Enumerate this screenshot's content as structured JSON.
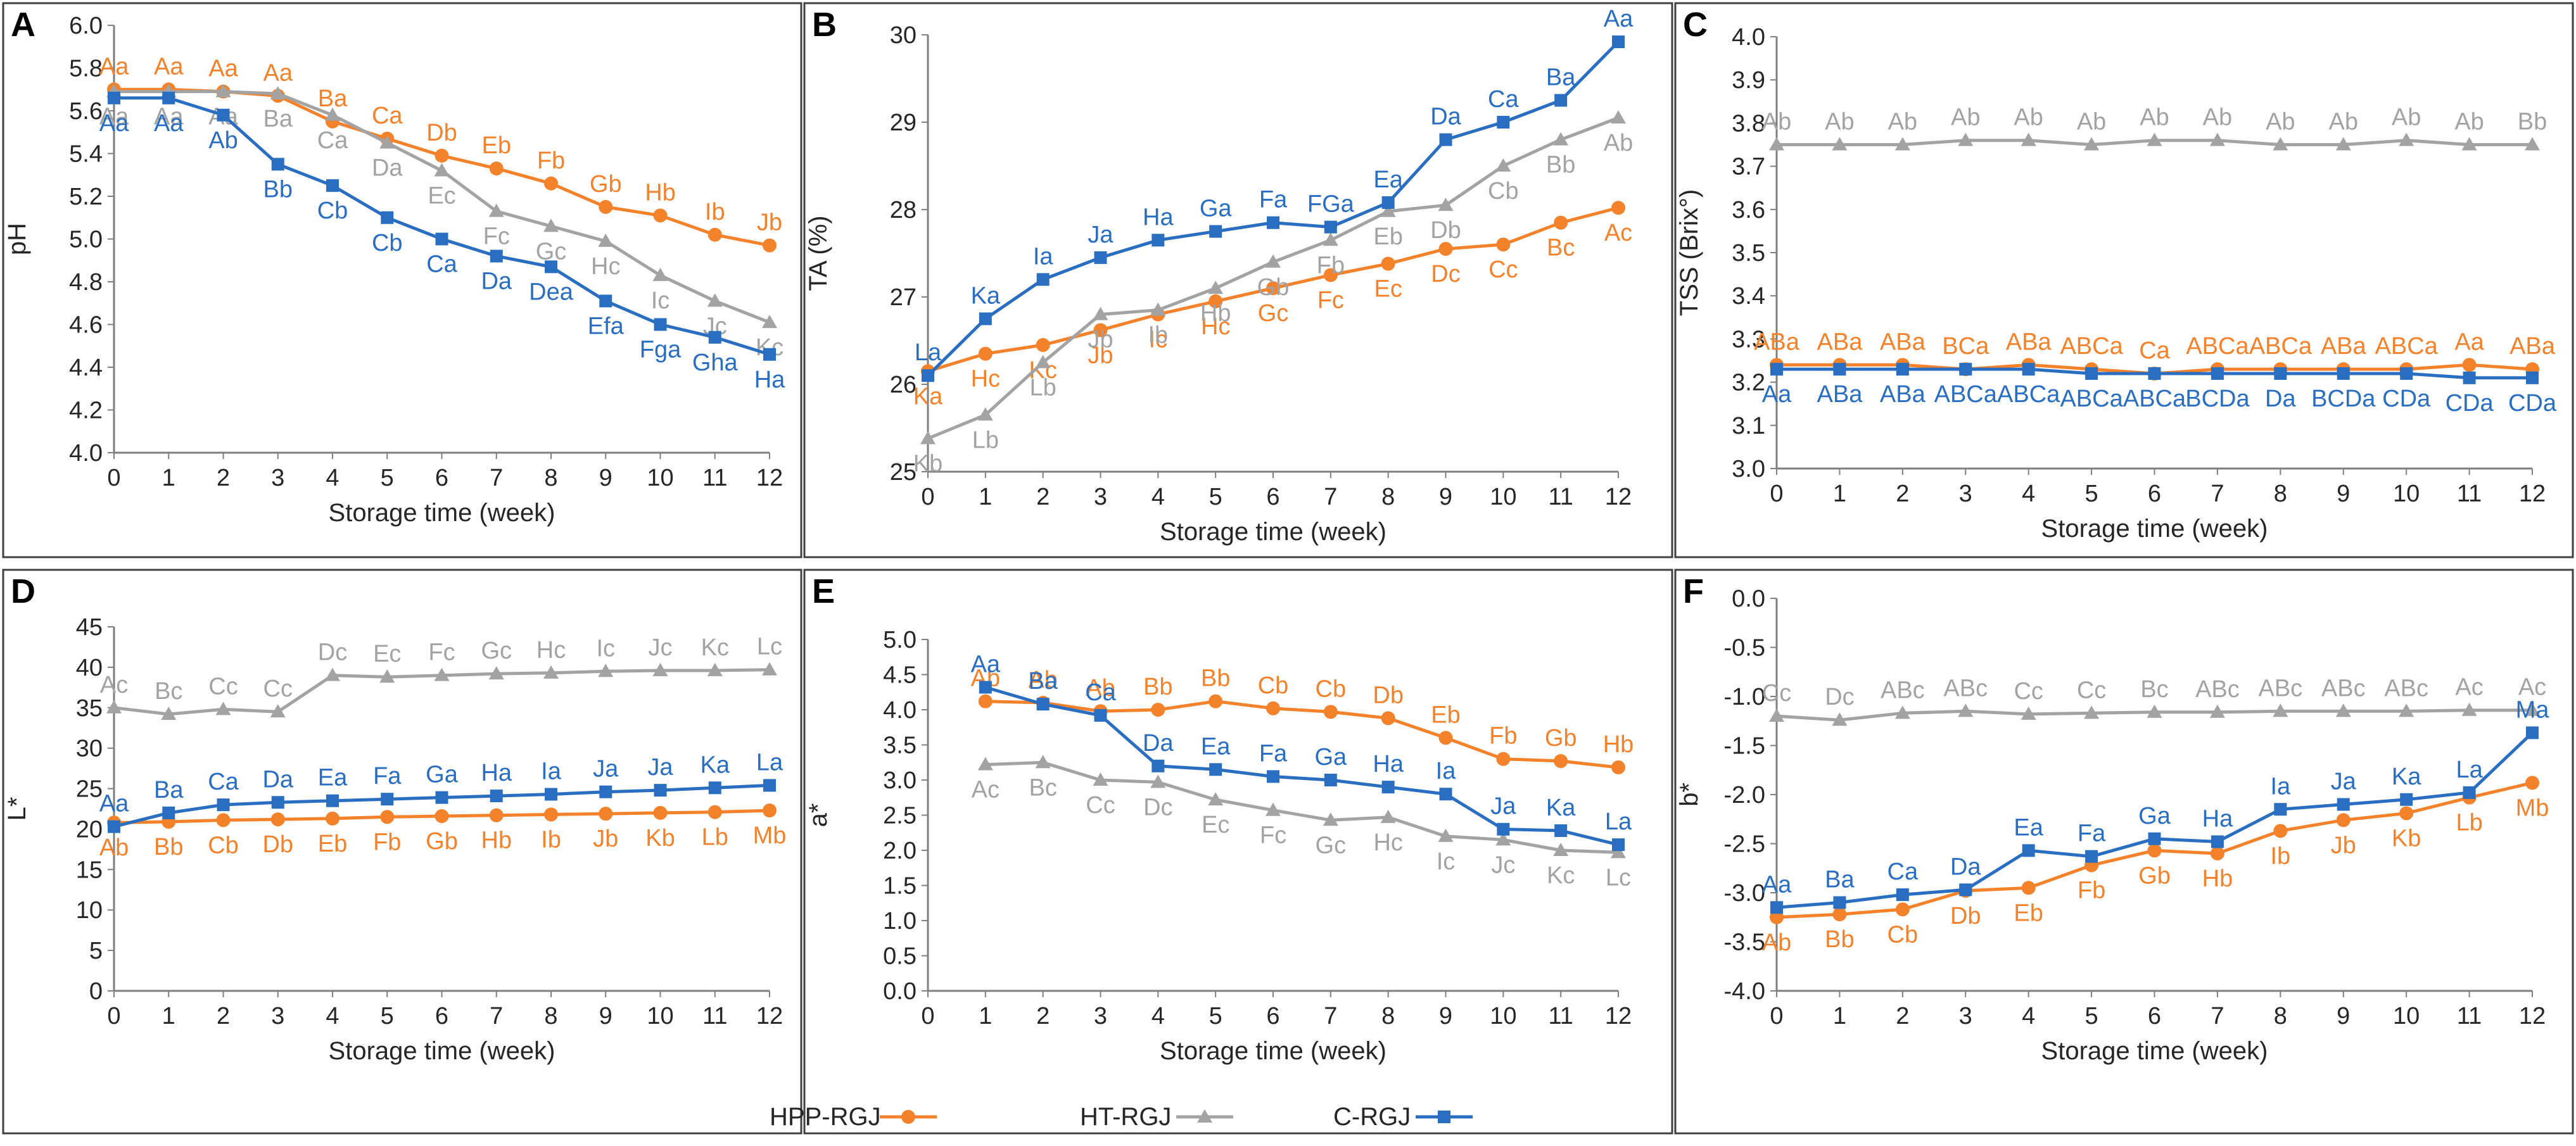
{
  "colors": {
    "hpp": "#F4822B",
    "ht": "#A3A3A3",
    "c": "#2A6EC2",
    "axis": "#7F7F7F",
    "frame": "#404040",
    "text": "#262626"
  },
  "legend": [
    {
      "name": "HPP-RGJ",
      "key": "hpp"
    },
    {
      "name": "HT-RGJ",
      "key": "ht"
    },
    {
      "name": "C-RGJ",
      "key": "c"
    }
  ],
  "chart_data": [
    {
      "type": "line",
      "letter": "A",
      "title": "",
      "xlabel": "Storage time (week)",
      "ylabel": "pH",
      "x": [
        0,
        1,
        2,
        3,
        4,
        5,
        6,
        7,
        8,
        9,
        10,
        11,
        12
      ],
      "ylim": [
        4.0,
        6.0
      ],
      "yticks": [
        "4.0",
        "4.2",
        "4.4",
        "4.6",
        "4.8",
        "5.0",
        "5.2",
        "5.4",
        "5.6",
        "5.8",
        "6.0"
      ],
      "series": [
        {
          "name": "HPP-RGJ",
          "key": "hpp",
          "values": [
            5.7,
            5.7,
            5.69,
            5.67,
            5.55,
            5.47,
            5.39,
            5.33,
            5.26,
            5.15,
            5.11,
            5.02,
            4.97
          ],
          "labels": [
            "Aa",
            "Aa",
            "Aa",
            "Aa",
            "Ba",
            "Ca",
            "Db",
            "Eb",
            "Fb",
            "Gb",
            "Hb",
            "Ib",
            "Jb"
          ]
        },
        {
          "name": "HT-RGJ",
          "key": "ht",
          "values": [
            5.69,
            5.69,
            5.69,
            5.68,
            5.58,
            5.45,
            5.32,
            5.13,
            5.06,
            4.99,
            4.83,
            4.71,
            4.61
          ],
          "labels": [
            "Aa",
            "Aa",
            "Aa",
            "Ba",
            "Ca",
            "Da",
            "Ec",
            "Fc",
            "Gc",
            "Hc",
            "Ic",
            "Jc",
            "Kc"
          ]
        },
        {
          "name": "C-RGJ",
          "key": "c",
          "values": [
            5.66,
            5.66,
            5.58,
            5.35,
            5.25,
            5.1,
            5.0,
            4.92,
            4.87,
            4.71,
            4.6,
            4.54,
            4.46
          ],
          "labels": [
            "Aa",
            "Aa",
            "Ab",
            "Bb",
            "Cb",
            "Cb",
            "Ca",
            "Da",
            "Dea",
            "Efa",
            "Fga",
            "Gha",
            "Ha"
          ]
        }
      ]
    },
    {
      "type": "line",
      "letter": "B",
      "title": "",
      "xlabel": "Storage time (week)",
      "ylabel": "TA (%)",
      "x": [
        0,
        1,
        2,
        3,
        4,
        5,
        6,
        7,
        8,
        9,
        10,
        11,
        12
      ],
      "ylim": [
        25,
        30
      ],
      "yticks": [
        "25",
        "26",
        "27",
        "28",
        "29",
        "30"
      ],
      "series": [
        {
          "name": "HPP-RGJ",
          "key": "hpp",
          "values": [
            26.15,
            26.35,
            26.45,
            26.62,
            26.8,
            26.95,
            27.1,
            27.25,
            27.38,
            27.55,
            27.6,
            27.85,
            28.02
          ],
          "labels": [
            "Ka",
            "Hc",
            "Kc",
            "Jb",
            "Ic",
            "Hc",
            "Gc",
            "Fc",
            "Ec",
            "Dc",
            "Cc",
            "Bc",
            "Ac"
          ]
        },
        {
          "name": "HT-RGJ",
          "key": "ht",
          "values": [
            25.38,
            25.65,
            26.25,
            26.8,
            26.85,
            27.1,
            27.4,
            27.65,
            27.98,
            28.05,
            28.5,
            28.8,
            29.05
          ],
          "labels": [
            "Kb",
            "Lb",
            "Lb",
            "Jb",
            "Ib",
            "Hb",
            "Gb",
            "Fb",
            "Eb",
            "Db",
            "Cb",
            "Bb",
            "Ab"
          ]
        },
        {
          "name": "C-RGJ",
          "key": "c",
          "values": [
            26.1,
            26.75,
            27.2,
            27.45,
            27.65,
            27.75,
            27.85,
            27.8,
            28.08,
            28.8,
            29.0,
            29.25,
            29.92
          ],
          "labels": [
            "La",
            "Ka",
            "Ia",
            "Ja",
            "Ha",
            "Ga",
            "Fa",
            "FGa",
            "Ea",
            "Da",
            "Ca",
            "Ba",
            "Aa"
          ]
        }
      ]
    },
    {
      "type": "line",
      "letter": "C",
      "title": "",
      "xlabel": "Storage time (week)",
      "ylabel": "TSS (Brix°)",
      "x": [
        0,
        1,
        2,
        3,
        4,
        5,
        6,
        7,
        8,
        9,
        10,
        11,
        12
      ],
      "ylim": [
        3.0,
        4.0
      ],
      "yticks": [
        "3.0",
        "3.1",
        "3.2",
        "3.3",
        "3.4",
        "3.5",
        "3.6",
        "3.7",
        "3.8",
        "3.9",
        "4.0"
      ],
      "series": [
        {
          "name": "HPP-RGJ",
          "key": "hpp",
          "values": [
            3.24,
            3.24,
            3.24,
            3.23,
            3.24,
            3.23,
            3.22,
            3.23,
            3.23,
            3.23,
            3.23,
            3.24,
            3.23
          ],
          "labels": [
            "ABa",
            "ABa",
            "ABa",
            "BCa",
            "ABa",
            "ABCa",
            "Ca",
            "ABCa",
            "ABCa",
            "ABa",
            "ABCa",
            "Aa",
            "ABa"
          ]
        },
        {
          "name": "HT-RGJ",
          "key": "ht",
          "values": [
            3.75,
            3.75,
            3.75,
            3.76,
            3.76,
            3.75,
            3.76,
            3.76,
            3.75,
            3.75,
            3.76,
            3.75,
            3.75
          ],
          "labels": [
            "Ab",
            "Ab",
            "Ab",
            "Ab",
            "Ab",
            "Ab",
            "Ab",
            "Ab",
            "Ab",
            "Ab",
            "Ab",
            "Ab",
            "Bb"
          ]
        },
        {
          "name": "C-RGJ",
          "key": "c",
          "values": [
            3.23,
            3.23,
            3.23,
            3.23,
            3.23,
            3.22,
            3.22,
            3.22,
            3.22,
            3.22,
            3.22,
            3.21,
            3.21
          ],
          "labels": [
            "Aa",
            "ABa",
            "ABa",
            "ABCa",
            "ABCa",
            "ABCa",
            "ABCa",
            "BCDa",
            "Da",
            "BCDa",
            "CDa",
            "CDa",
            "CDa"
          ]
        }
      ]
    },
    {
      "type": "line",
      "letter": "D",
      "title": "",
      "xlabel": "Storage time (week)",
      "ylabel": "L*",
      "x": [
        0,
        1,
        2,
        3,
        4,
        5,
        6,
        7,
        8,
        9,
        10,
        11,
        12
      ],
      "ylim": [
        0,
        45
      ],
      "yticks": [
        "0",
        "5",
        "10",
        "15",
        "20",
        "25",
        "30",
        "35",
        "40",
        "45"
      ],
      "series": [
        {
          "name": "HPP-RGJ",
          "key": "hpp",
          "values": [
            20.8,
            20.9,
            21.1,
            21.2,
            21.3,
            21.5,
            21.6,
            21.7,
            21.8,
            21.9,
            22.0,
            22.1,
            22.3
          ],
          "labels": [
            "Ab",
            "Bb",
            "Cb",
            "Db",
            "Eb",
            "Fb",
            "Gb",
            "Hb",
            "Ib",
            "Jb",
            "Kb",
            "Lb",
            "Mb"
          ]
        },
        {
          "name": "HT-RGJ",
          "key": "ht",
          "values": [
            35.0,
            34.2,
            34.8,
            34.5,
            39.0,
            38.8,
            39.0,
            39.2,
            39.3,
            39.5,
            39.6,
            39.6,
            39.7
          ],
          "labels": [
            "Ac",
            "Bc",
            "Cc",
            "Cc",
            "Dc",
            "Ec",
            "Fc",
            "Gc",
            "Hc",
            "Ic",
            "Jc",
            "Kc",
            "Lc"
          ]
        },
        {
          "name": "C-RGJ",
          "key": "c",
          "values": [
            20.3,
            22.0,
            23.0,
            23.3,
            23.5,
            23.7,
            23.9,
            24.1,
            24.3,
            24.6,
            24.8,
            25.1,
            25.4
          ],
          "labels": [
            "Aa",
            "Ba",
            "Ca",
            "Da",
            "Ea",
            "Fa",
            "Ga",
            "Ha",
            "Ia",
            "Ja",
            "Ja",
            "Ka",
            "La"
          ]
        }
      ]
    },
    {
      "type": "line",
      "letter": "E",
      "title": "",
      "xlabel": "Storage time (week)",
      "ylabel": "a*",
      "x": [
        0,
        1,
        2,
        3,
        4,
        5,
        6,
        7,
        8,
        9,
        10,
        11,
        12
      ],
      "ylim": [
        0.0,
        5.0
      ],
      "yticks": [
        "0.0",
        "0.5",
        "1.0",
        "1.5",
        "2.0",
        "2.5",
        "3.0",
        "3.5",
        "4.0",
        "4.5",
        "5.0"
      ],
      "series": [
        {
          "name": "HPP-RGJ",
          "key": "hpp",
          "x": [
            1,
            2,
            3,
            4,
            5,
            6,
            7,
            8,
            9,
            10,
            11,
            12
          ],
          "values": [
            4.12,
            4.1,
            3.98,
            4.0,
            4.12,
            4.02,
            3.97,
            3.88,
            3.6,
            3.3,
            3.27,
            3.18
          ],
          "labels": [
            "Ab",
            "Ab",
            "Ab",
            "Bb",
            "Bb",
            "Cb",
            "Cb",
            "Db",
            "Eb",
            "Fb",
            "Gb",
            "Hb"
          ]
        },
        {
          "name": "HT-RGJ",
          "key": "ht",
          "x": [
            1,
            2,
            3,
            4,
            5,
            6,
            7,
            8,
            9,
            10,
            11,
            12
          ],
          "values": [
            3.22,
            3.25,
            3.0,
            2.97,
            2.72,
            2.57,
            2.43,
            2.47,
            2.2,
            2.15,
            2.0,
            1.97
          ],
          "labels": [
            "Ac",
            "Bc",
            "Cc",
            "Dc",
            "Ec",
            "Fc",
            "Gc",
            "Hc",
            "Ic",
            "Jc",
            "Kc",
            "Lc"
          ]
        },
        {
          "name": "C-RGJ",
          "key": "c",
          "x": [
            1,
            2,
            3,
            4,
            5,
            6,
            7,
            8,
            9,
            10,
            11,
            12
          ],
          "values": [
            4.32,
            4.08,
            3.92,
            3.2,
            3.15,
            3.05,
            3.0,
            2.9,
            2.8,
            2.3,
            2.28,
            2.08
          ],
          "labels": [
            "Aa",
            "Ba",
            "Ca",
            "Da",
            "Ea",
            "Fa",
            "Ga",
            "Ha",
            "Ia",
            "Ja",
            "Ka",
            "La"
          ]
        }
      ]
    },
    {
      "type": "line",
      "letter": "F",
      "title": "",
      "xlabel": "Storage time (week)",
      "ylabel": "b*",
      "x": [
        0,
        1,
        2,
        3,
        4,
        5,
        6,
        7,
        8,
        9,
        10,
        11,
        12
      ],
      "ylim": [
        -4.0,
        0.0
      ],
      "yticks": [
        "-4.0",
        "-3.5",
        "-3.0",
        "-2.5",
        "-2.0",
        "-1.5",
        "-1.0",
        "-0.5",
        "0.0"
      ],
      "series": [
        {
          "name": "HPP-RGJ",
          "key": "hpp",
          "values": [
            -3.25,
            -3.22,
            -3.17,
            -2.98,
            -2.95,
            -2.72,
            -2.57,
            -2.6,
            -2.37,
            -2.26,
            -2.19,
            -2.03,
            -1.88
          ],
          "labels": [
            "Ab",
            "Bb",
            "Cb",
            "Db",
            "Eb",
            "Fb",
            "Gb",
            "Hb",
            "Ib",
            "Jb",
            "Kb",
            "Lb",
            "Mb"
          ]
        },
        {
          "name": "HT-RGJ",
          "key": "ht",
          "values": [
            -1.2,
            -1.24,
            -1.17,
            -1.15,
            -1.18,
            -1.17,
            -1.16,
            -1.16,
            -1.15,
            -1.15,
            -1.15,
            -1.14,
            -1.14
          ],
          "labels": [
            "Cc",
            "Dc",
            "ABc",
            "ABc",
            "Cc",
            "Cc",
            "Bc",
            "ABc",
            "ABc",
            "ABc",
            "ABc",
            "Ac",
            "Ac"
          ]
        },
        {
          "name": "C-RGJ",
          "key": "c",
          "values": [
            -3.15,
            -3.1,
            -3.02,
            -2.97,
            -2.57,
            -2.63,
            -2.45,
            -2.48,
            -2.15,
            -2.1,
            -2.05,
            -1.98,
            -1.37
          ],
          "labels": [
            "Aa",
            "Ba",
            "Ca",
            "Da",
            "Ea",
            "Fa",
            "Ga",
            "Ha",
            "Ia",
            "Ja",
            "Ka",
            "La",
            "Ma"
          ]
        }
      ]
    }
  ]
}
